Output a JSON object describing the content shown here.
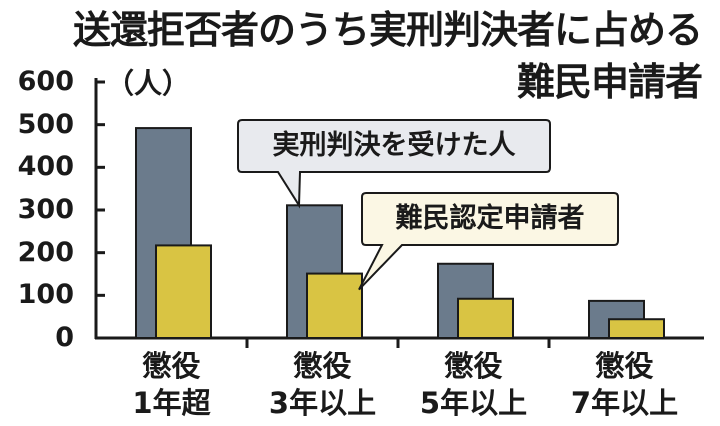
{
  "chart_data": {
    "type": "bar",
    "title": "送還拒否者のうち実刑判決者に占める",
    "title_line2": "難民申請者",
    "unit": "（人）",
    "yticks": [
      "600",
      "500",
      "400",
      "300",
      "200",
      "100",
      "0"
    ],
    "ylim": [
      0,
      600
    ],
    "categories": [
      {
        "line1": "懲役",
        "line2": "1年超"
      },
      {
        "line1": "懲役",
        "line2": "3年以上"
      },
      {
        "line1": "懲役",
        "line2": "5年以上"
      },
      {
        "line1": "懲役",
        "line2": "7年以上"
      }
    ],
    "series": [
      {
        "name": "実刑判決を受けた人",
        "color": "#6b7b8c",
        "values": [
          492,
          311,
          174,
          87
        ]
      },
      {
        "name": "難民認定申請者",
        "color": "#d9c443",
        "values": [
          217,
          151,
          92,
          44
        ]
      }
    ],
    "grid": false,
    "legend": "callouts"
  }
}
